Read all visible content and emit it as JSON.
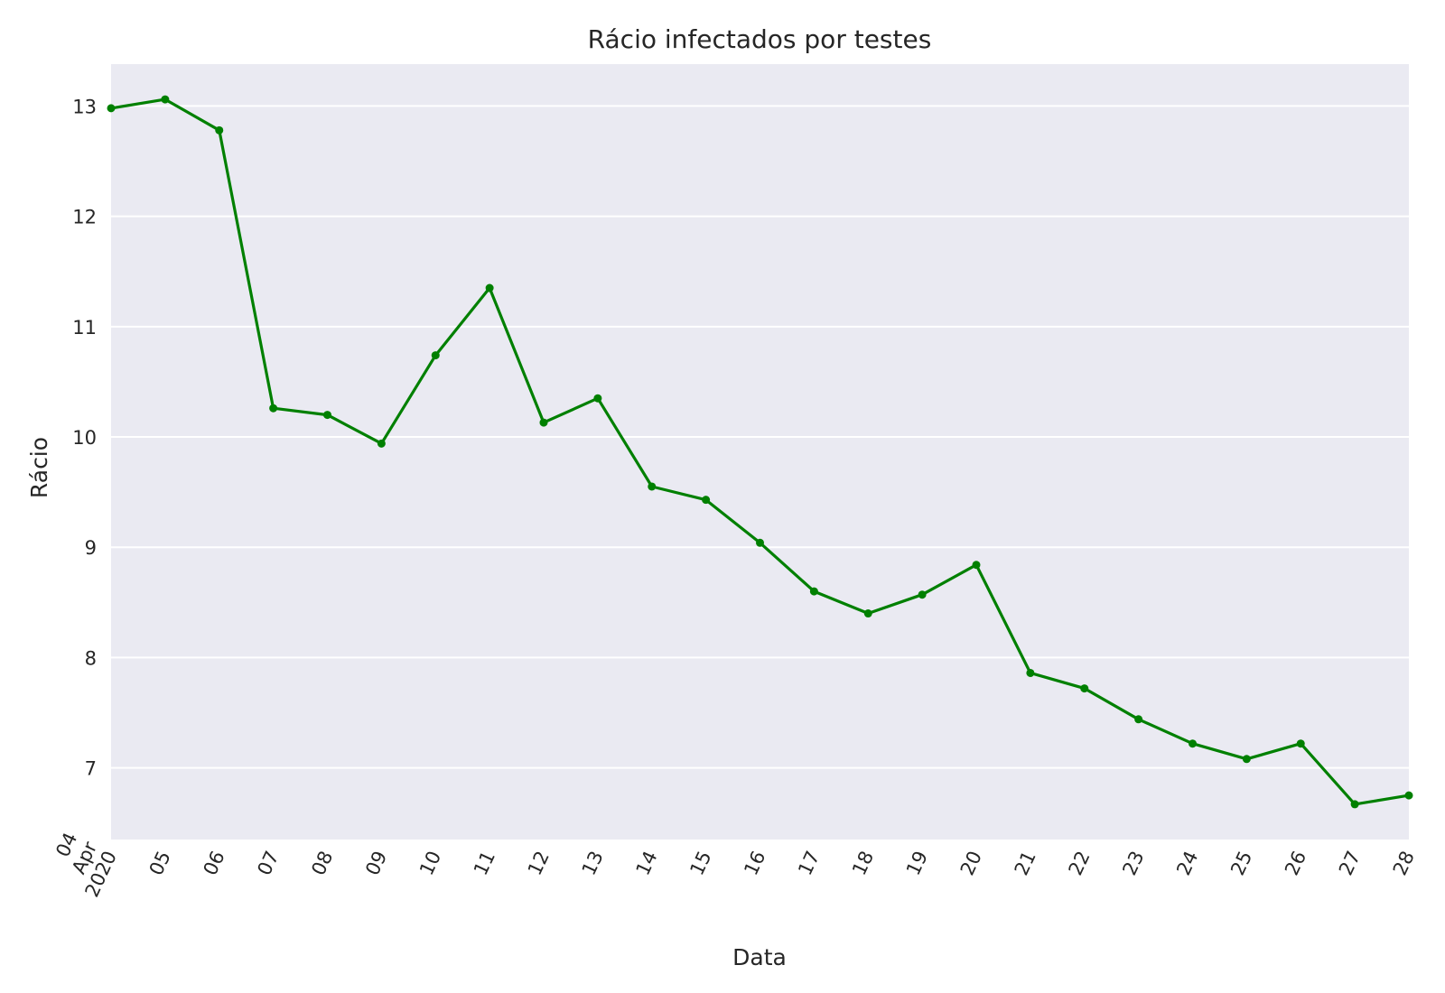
{
  "chart_data": {
    "type": "line",
    "title": "Rácio infectados por testes",
    "xlabel": "Data",
    "ylabel": "Rácio",
    "ylim": [
      6.35,
      13.38
    ],
    "yticks": [
      7,
      8,
      9,
      10,
      11,
      12,
      13
    ],
    "grid": true,
    "legend": "none",
    "colors": {
      "background": "#eaeaf2",
      "grid": "#ffffff",
      "line": "#008000",
      "text": "#262626"
    },
    "x": [
      "2020-04-04",
      "2020-04-05",
      "2020-04-06",
      "2020-04-07",
      "2020-04-08",
      "2020-04-09",
      "2020-04-10",
      "2020-04-11",
      "2020-04-12",
      "2020-04-13",
      "2020-04-14",
      "2020-04-15",
      "2020-04-16",
      "2020-04-17",
      "2020-04-18",
      "2020-04-19",
      "2020-04-20",
      "2020-04-21",
      "2020-04-22",
      "2020-04-23",
      "2020-04-24",
      "2020-04-25",
      "2020-04-26",
      "2020-04-27",
      "2020-04-28"
    ],
    "xtick_labels": [
      [
        "04",
        "Apr",
        "2020"
      ],
      [
        "05"
      ],
      [
        "06"
      ],
      [
        "07"
      ],
      [
        "08"
      ],
      [
        "09"
      ],
      [
        "10"
      ],
      [
        "11"
      ],
      [
        "12"
      ],
      [
        "13"
      ],
      [
        "14"
      ],
      [
        "15"
      ],
      [
        "16"
      ],
      [
        "17"
      ],
      [
        "18"
      ],
      [
        "19"
      ],
      [
        "20"
      ],
      [
        "21"
      ],
      [
        "22"
      ],
      [
        "23"
      ],
      [
        "24"
      ],
      [
        "25"
      ],
      [
        "26"
      ],
      [
        "27"
      ],
      [
        "28"
      ]
    ],
    "series": [
      {
        "values": [
          12.98,
          13.06,
          12.78,
          10.26,
          10.2,
          9.94,
          10.74,
          11.35,
          10.13,
          10.35,
          9.55,
          9.43,
          9.04,
          8.6,
          8.4,
          8.57,
          8.84,
          7.86,
          7.72,
          7.44,
          7.22,
          7.08,
          7.22,
          6.67,
          6.75
        ]
      }
    ]
  }
}
